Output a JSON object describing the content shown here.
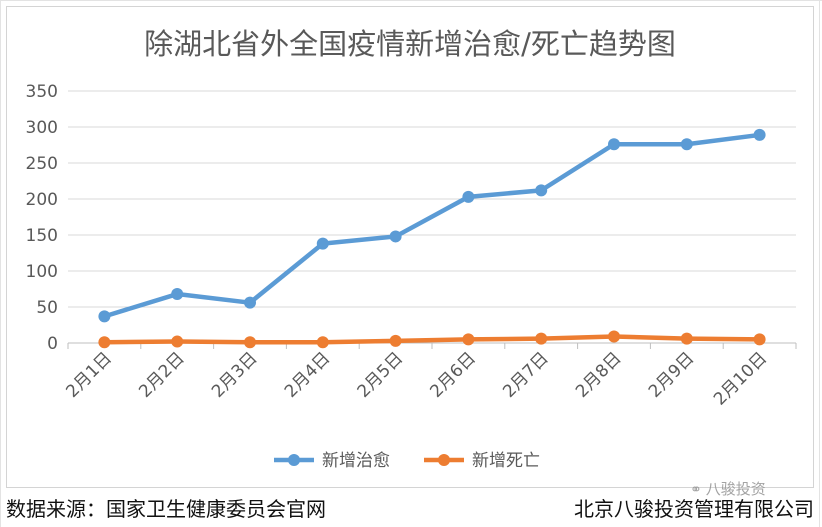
{
  "chart_data": {
    "type": "line",
    "title": "除湖北省外全国疫情新增治愈/死亡趋势图",
    "categories": [
      "2月1日",
      "2月2日",
      "2月3日",
      "2月4日",
      "2月5日",
      "2月6日",
      "2月7日",
      "2月8日",
      "2月9日",
      "2月10日"
    ],
    "series": [
      {
        "name": "新增治愈",
        "color": "#5b9bd5",
        "values": [
          37,
          68,
          56,
          138,
          148,
          203,
          212,
          276,
          276,
          289
        ]
      },
      {
        "name": "新增死亡",
        "color": "#ed7d31",
        "values": [
          1,
          2,
          1,
          1,
          3,
          5,
          6,
          9,
          6,
          5
        ]
      }
    ],
    "ylim": [
      0,
      350
    ],
    "yticks": [
      0,
      50,
      100,
      150,
      200,
      250,
      300,
      350
    ],
    "grid": true,
    "legend_position": "bottom"
  },
  "footer": {
    "source": "数据来源：国家卫生健康委员会官网",
    "company": "北京八骏投资管理有限公司"
  },
  "watermark": {
    "text": "八骏投资",
    "icon": "wechat-icon"
  }
}
